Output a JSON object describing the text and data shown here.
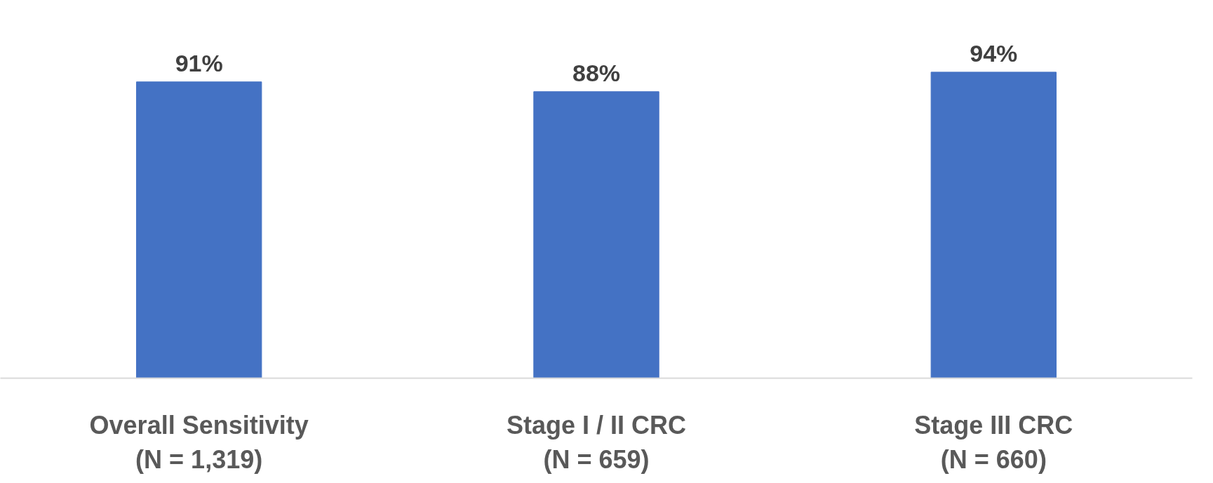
{
  "chart_data": {
    "type": "bar",
    "categories": [
      "Overall Sensitivity\n(N = 1,319)",
      "Stage I / II CRC\n(N = 659)",
      "Stage III CRC\n(N = 660)"
    ],
    "values": [
      91,
      88,
      94
    ],
    "value_labels": [
      "91%",
      "88%",
      "94%"
    ],
    "color": "#4472c4",
    "tick_labels": "x"
  }
}
